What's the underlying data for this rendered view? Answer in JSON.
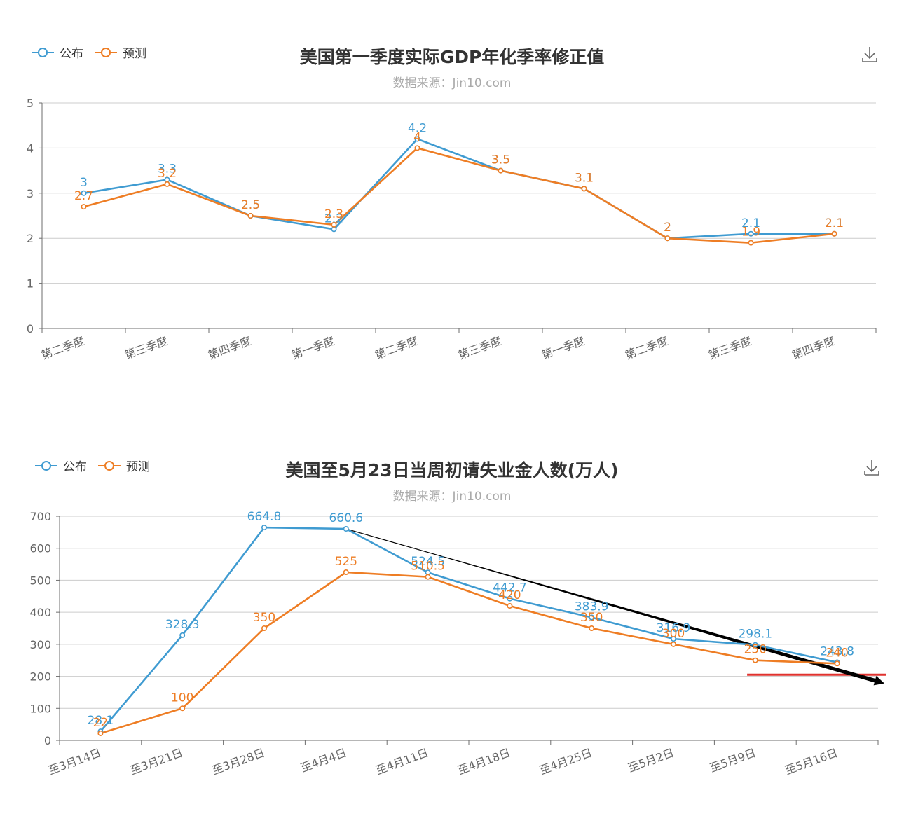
{
  "colors": {
    "published": "#3f9bd1",
    "forecast": "#ee7d24",
    "grid": "#cccccc",
    "axis": "#6e6e6e",
    "arrow": "#000000",
    "red_line": "#e0322f"
  },
  "charts": [
    {
      "id": "gdp",
      "title": "美国第一季度实际GDP年化季率修正值",
      "subtitle": "数据来源：Jin10.com",
      "legend": {
        "published": "公布",
        "forecast": "预测"
      },
      "download_icon": "download-icon"
    },
    {
      "id": "claims",
      "title": "美国至5月23日当周初请失业金人数(万人)",
      "subtitle": "数据来源：Jin10.com",
      "legend": {
        "published": "公布",
        "forecast": "预测"
      },
      "download_icon": "download-icon"
    }
  ],
  "chart_data": [
    {
      "type": "line",
      "title": "美国第一季度实际GDP年化季率修正值",
      "subtitle": "数据来源：Jin10.com",
      "categories": [
        "第二季度",
        "第三季度",
        "第四季度",
        "第一季度",
        "第二季度",
        "第三季度",
        "第一季度",
        "第二季度",
        "第三季度",
        "第四季度"
      ],
      "ylim": [
        0,
        5
      ],
      "yticks": [
        0,
        1,
        2,
        3,
        4,
        5
      ],
      "grid": true,
      "legend_position": "top-left",
      "series": [
        {
          "name": "公布",
          "values": [
            3,
            3.3,
            2.5,
            2.2,
            4.2,
            3.5,
            3.1,
            2,
            2.1,
            2.1
          ]
        },
        {
          "name": "预测",
          "values": [
            2.7,
            3.2,
            2.5,
            2.3,
            4,
            3.5,
            3.1,
            2,
            1.9,
            2.1
          ]
        }
      ]
    },
    {
      "type": "line",
      "title": "美国至5月23日当周初请失业金人数(万人)",
      "subtitle": "数据来源：Jin10.com",
      "categories": [
        "至3月14日",
        "至3月21日",
        "至3月28日",
        "至4月4日",
        "至4月11日",
        "至4月18日",
        "至4月25日",
        "至5月2日",
        "至5月9日",
        "至5月16日"
      ],
      "ylim": [
        0,
        700
      ],
      "yticks": [
        0,
        100,
        200,
        300,
        400,
        500,
        600,
        700
      ],
      "grid": true,
      "legend_position": "top-left",
      "series": [
        {
          "name": "公布",
          "values": [
            28.1,
            328.3,
            664.8,
            660.6,
            524.5,
            442.7,
            383.9,
            316.9,
            298.1,
            243.8
          ]
        },
        {
          "name": "预测",
          "values": [
            22,
            100,
            350,
            525,
            510.5,
            420,
            350,
            300,
            250,
            240
          ]
        }
      ],
      "annotations": [
        {
          "type": "trend-arrow",
          "from": {
            "x": "至4月4日",
            "y": 660.6
          },
          "to": {
            "x": "至5月16日",
            "y": 200
          }
        },
        {
          "type": "reference-line",
          "y": 205,
          "from_x": "至5月9日"
        }
      ]
    }
  ]
}
